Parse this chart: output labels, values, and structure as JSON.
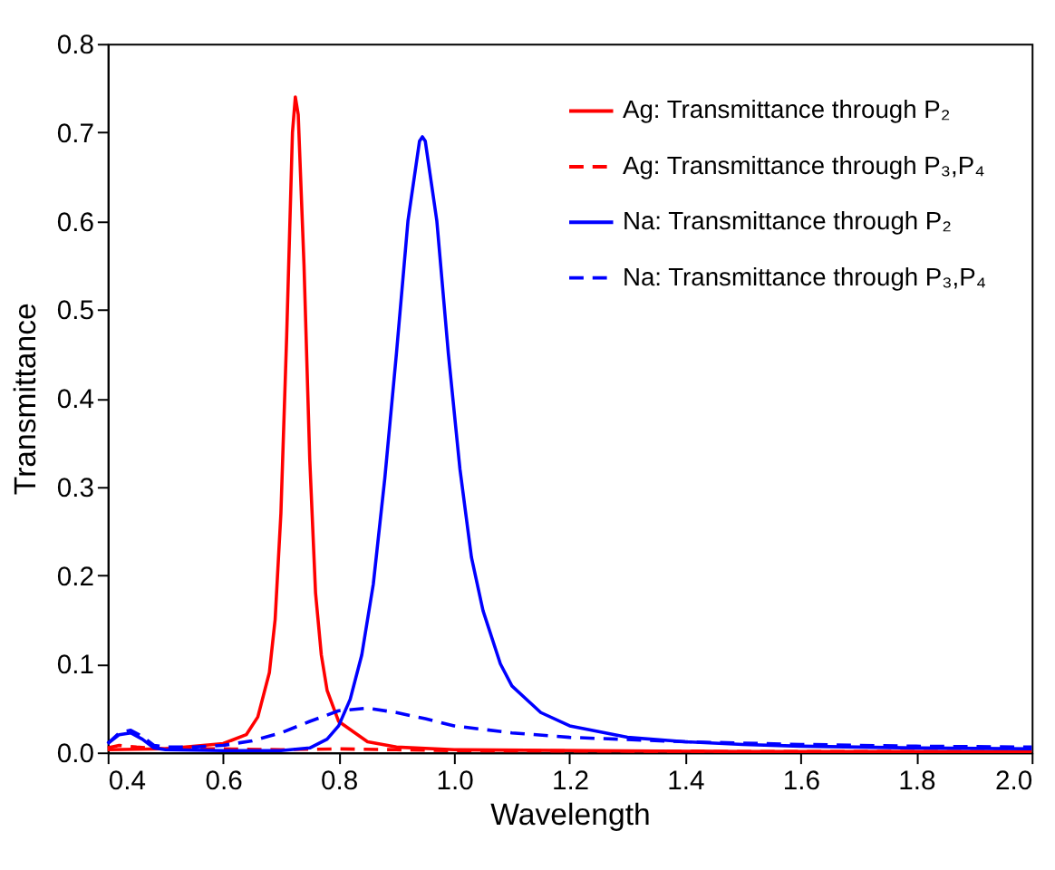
{
  "chart_data": {
    "type": "line",
    "xlabel": "Wavelength",
    "ylabel": "Transmittance",
    "xlim": [
      0.4,
      2.0
    ],
    "ylim": [
      0,
      0.8
    ],
    "xticks": [
      0.4,
      0.6,
      0.8,
      {
        "value": 1,
        "label": "1.0"
      },
      1.2,
      1.4,
      1.6,
      1.8,
      {
        "value": 2,
        "label": "2.0"
      }
    ],
    "yticks": [
      {
        "value": 0,
        "label": "0.0"
      },
      0.1,
      0.2,
      0.3,
      0.4,
      0.5,
      0.6,
      0.7,
      0.8
    ],
    "grid": false,
    "legend": "top right",
    "marker": "none",
    "series": [
      {
        "name": "Ag: Transmittance through P₂",
        "color": "#ff0000",
        "line_style": "solid",
        "x": [
          0.4,
          0.5,
          0.6,
          0.64,
          0.66,
          0.68,
          0.69,
          0.7,
          0.71,
          0.72,
          0.725,
          0.73,
          0.74,
          0.75,
          0.76,
          0.77,
          0.78,
          0.8,
          0.85,
          0.9,
          1.0,
          1.5,
          2.0
        ],
        "values": [
          0.003,
          0.004,
          0.01,
          0.02,
          0.04,
          0.09,
          0.15,
          0.27,
          0.47,
          0.7,
          0.74,
          0.72,
          0.55,
          0.33,
          0.18,
          0.11,
          0.07,
          0.035,
          0.012,
          0.006,
          0.003,
          0.001,
          0.001
        ]
      },
      {
        "name": "Ag: Transmittance through P₃,P₄",
        "color": "#ff0000",
        "line_style": "dashed",
        "x": [
          0.4,
          0.42,
          0.45,
          0.5,
          0.6,
          0.7,
          0.8,
          0.9,
          1.0,
          1.5,
          2.0
        ],
        "values": [
          0.005,
          0.008,
          0.006,
          0.004,
          0.004,
          0.003,
          0.004,
          0.003,
          0.002,
          0.001,
          0.001
        ]
      },
      {
        "name": "Na: Transmittance through P₂",
        "color": "#0000ff",
        "line_style": "solid",
        "x": [
          0.4,
          0.42,
          0.44,
          0.46,
          0.48,
          0.5,
          0.6,
          0.7,
          0.75,
          0.78,
          0.8,
          0.82,
          0.84,
          0.86,
          0.88,
          0.9,
          0.92,
          0.94,
          0.945,
          0.95,
          0.97,
          0.99,
          1.01,
          1.03,
          1.05,
          1.08,
          1.1,
          1.15,
          1.2,
          1.3,
          1.4,
          1.5,
          1.6,
          1.8,
          2.0
        ],
        "values": [
          0.01,
          0.02,
          0.022,
          0.015,
          0.005,
          0.003,
          0.002,
          0.002,
          0.005,
          0.015,
          0.03,
          0.06,
          0.11,
          0.19,
          0.31,
          0.45,
          0.6,
          0.69,
          0.695,
          0.69,
          0.6,
          0.45,
          0.32,
          0.22,
          0.16,
          0.1,
          0.075,
          0.045,
          0.03,
          0.017,
          0.012,
          0.009,
          0.007,
          0.005,
          0.004
        ]
      },
      {
        "name": "Na: Transmittance through P₃,P₄",
        "color": "#0000ff",
        "line_style": "dashed",
        "x": [
          0.4,
          0.42,
          0.44,
          0.46,
          0.48,
          0.5,
          0.55,
          0.6,
          0.65,
          0.7,
          0.75,
          0.8,
          0.85,
          0.9,
          0.95,
          1.0,
          1.1,
          1.2,
          1.4,
          1.6,
          1.8,
          2.0
        ],
        "values": [
          0.01,
          0.022,
          0.025,
          0.018,
          0.008,
          0.006,
          0.006,
          0.008,
          0.013,
          0.022,
          0.035,
          0.047,
          0.05,
          0.045,
          0.038,
          0.03,
          0.022,
          0.017,
          0.012,
          0.009,
          0.007,
          0.006
        ]
      }
    ]
  }
}
